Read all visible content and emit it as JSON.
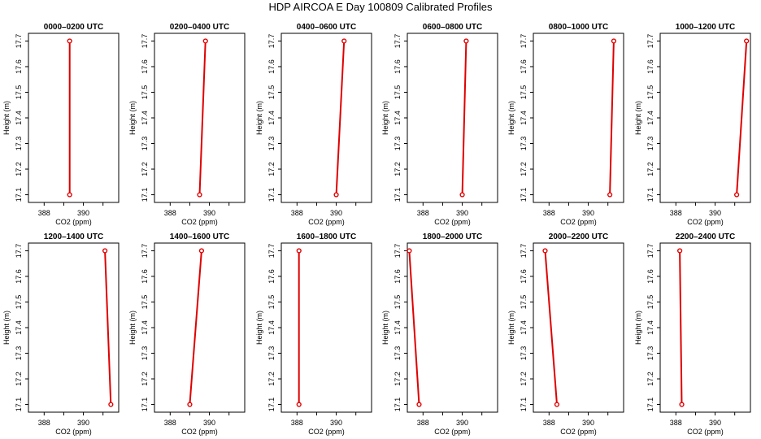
{
  "title": "HDP AIRCOA E  Day 100809  Calibrated Profiles",
  "line_color": "#e00000",
  "chart_data": [
    {
      "type": "line",
      "title": "0000–0200 UTC",
      "xlabel": "CO2 (ppm)",
      "ylabel": "Height (m)",
      "xlim": [
        387.2,
        391.8
      ],
      "ylim": [
        17.07,
        17.73
      ],
      "x_ticks": [
        "388",
        "390"
      ],
      "y_ticks": [
        "17.1",
        "17.2",
        "17.3",
        "17.4",
        "17.5",
        "17.6",
        "17.7"
      ],
      "series": [
        {
          "x": [
            389.3,
            389.3
          ],
          "y": [
            17.1,
            17.7
          ]
        }
      ]
    },
    {
      "type": "line",
      "title": "0200–0400 UTC",
      "xlabel": "CO2 (ppm)",
      "ylabel": "Height (m)",
      "xlim": [
        387.2,
        391.8
      ],
      "ylim": [
        17.07,
        17.73
      ],
      "x_ticks": [
        "388",
        "390"
      ],
      "y_ticks": [
        "17.1",
        "17.2",
        "17.3",
        "17.4",
        "17.5",
        "17.6",
        "17.7"
      ],
      "series": [
        {
          "x": [
            389.5,
            389.8
          ],
          "y": [
            17.1,
            17.7
          ]
        }
      ]
    },
    {
      "type": "line",
      "title": "0400–0600 UTC",
      "xlabel": "CO2 (ppm)",
      "ylabel": "Height (m)",
      "xlim": [
        387.2,
        391.8
      ],
      "ylim": [
        17.07,
        17.73
      ],
      "x_ticks": [
        "388",
        "390"
      ],
      "y_ticks": [
        "17.1",
        "17.2",
        "17.3",
        "17.4",
        "17.5",
        "17.6",
        "17.7"
      ],
      "series": [
        {
          "x": [
            390.0,
            390.4
          ],
          "y": [
            17.1,
            17.7
          ]
        }
      ]
    },
    {
      "type": "line",
      "title": "0600–0800 UTC",
      "xlabel": "CO2 (ppm)",
      "ylabel": "Height (m)",
      "xlim": [
        387.2,
        391.8
      ],
      "ylim": [
        17.07,
        17.73
      ],
      "x_ticks": [
        "388",
        "390"
      ],
      "y_ticks": [
        "17.1",
        "17.2",
        "17.3",
        "17.4",
        "17.5",
        "17.6",
        "17.7"
      ],
      "series": [
        {
          "x": [
            390.0,
            390.2
          ],
          "y": [
            17.1,
            17.7
          ]
        }
      ]
    },
    {
      "type": "line",
      "title": "0800–1000 UTC",
      "xlabel": "CO2 (ppm)",
      "ylabel": "Height (m)",
      "xlim": [
        387.2,
        391.8
      ],
      "ylim": [
        17.07,
        17.73
      ],
      "x_ticks": [
        "388",
        "390"
      ],
      "y_ticks": [
        "17.1",
        "17.2",
        "17.3",
        "17.4",
        "17.5",
        "17.6",
        "17.7"
      ],
      "series": [
        {
          "x": [
            391.1,
            391.3
          ],
          "y": [
            17.1,
            17.7
          ]
        }
      ]
    },
    {
      "type": "line",
      "title": "1000–1200 UTC",
      "xlabel": "CO2 (ppm)",
      "ylabel": "Height (m)",
      "xlim": [
        387.2,
        391.8
      ],
      "ylim": [
        17.07,
        17.73
      ],
      "x_ticks": [
        "388",
        "390"
      ],
      "y_ticks": [
        "17.1",
        "17.2",
        "17.3",
        "17.4",
        "17.5",
        "17.6",
        "17.7"
      ],
      "series": [
        {
          "x": [
            391.1,
            391.6
          ],
          "y": [
            17.1,
            17.7
          ]
        }
      ]
    },
    {
      "type": "line",
      "title": "1200–1400 UTC",
      "xlabel": "CO2 (ppm)",
      "ylabel": "Height (m)",
      "xlim": [
        387.2,
        391.8
      ],
      "ylim": [
        17.07,
        17.73
      ],
      "x_ticks": [
        "388",
        "390"
      ],
      "y_ticks": [
        "17.1",
        "17.2",
        "17.3",
        "17.4",
        "17.5",
        "17.6",
        "17.7"
      ],
      "series": [
        {
          "x": [
            391.4,
            391.1
          ],
          "y": [
            17.1,
            17.7
          ]
        }
      ]
    },
    {
      "type": "line",
      "title": "1400–1600 UTC",
      "xlabel": "CO2 (ppm)",
      "ylabel": "Height (m)",
      "xlim": [
        387.2,
        391.8
      ],
      "ylim": [
        17.07,
        17.73
      ],
      "x_ticks": [
        "388",
        "390"
      ],
      "y_ticks": [
        "17.1",
        "17.2",
        "17.3",
        "17.4",
        "17.5",
        "17.6",
        "17.7"
      ],
      "series": [
        {
          "x": [
            389.0,
            389.6
          ],
          "y": [
            17.1,
            17.7
          ]
        }
      ]
    },
    {
      "type": "line",
      "title": "1600–1800 UTC",
      "xlabel": "CO2 (ppm)",
      "ylabel": "Height (m)",
      "xlim": [
        387.2,
        391.8
      ],
      "ylim": [
        17.07,
        17.73
      ],
      "x_ticks": [
        "388",
        "390"
      ],
      "y_ticks": [
        "17.1",
        "17.2",
        "17.3",
        "17.4",
        "17.5",
        "17.6",
        "17.7"
      ],
      "series": [
        {
          "x": [
            388.1,
            388.1
          ],
          "y": [
            17.1,
            17.7
          ]
        }
      ]
    },
    {
      "type": "line",
      "title": "1800–2000 UTC",
      "xlabel": "CO2 (ppm)",
      "ylabel": "Height (m)",
      "xlim": [
        387.2,
        391.8
      ],
      "ylim": [
        17.07,
        17.73
      ],
      "x_ticks": [
        "388",
        "390"
      ],
      "y_ticks": [
        "17.1",
        "17.2",
        "17.3",
        "17.4",
        "17.5",
        "17.6",
        "17.7"
      ],
      "series": [
        {
          "x": [
            387.8,
            387.3
          ],
          "y": [
            17.1,
            17.7
          ]
        }
      ]
    },
    {
      "type": "line",
      "title": "2000–2200 UTC",
      "xlabel": "CO2 (ppm)",
      "ylabel": "Height (m)",
      "xlim": [
        387.2,
        391.8
      ],
      "ylim": [
        17.07,
        17.73
      ],
      "x_ticks": [
        "388",
        "390"
      ],
      "y_ticks": [
        "17.1",
        "17.2",
        "17.3",
        "17.4",
        "17.5",
        "17.6",
        "17.7"
      ],
      "series": [
        {
          "x": [
            388.4,
            387.8
          ],
          "y": [
            17.1,
            17.7
          ]
        }
      ]
    },
    {
      "type": "line",
      "title": "2200–2400 UTC",
      "xlabel": "CO2 (ppm)",
      "ylabel": "Height (m)",
      "xlim": [
        387.2,
        391.8
      ],
      "ylim": [
        17.07,
        17.73
      ],
      "x_ticks": [
        "388",
        "390"
      ],
      "y_ticks": [
        "17.1",
        "17.2",
        "17.3",
        "17.4",
        "17.5",
        "17.6",
        "17.7"
      ],
      "series": [
        {
          "x": [
            388.3,
            388.2
          ],
          "y": [
            17.1,
            17.7
          ]
        }
      ]
    }
  ]
}
